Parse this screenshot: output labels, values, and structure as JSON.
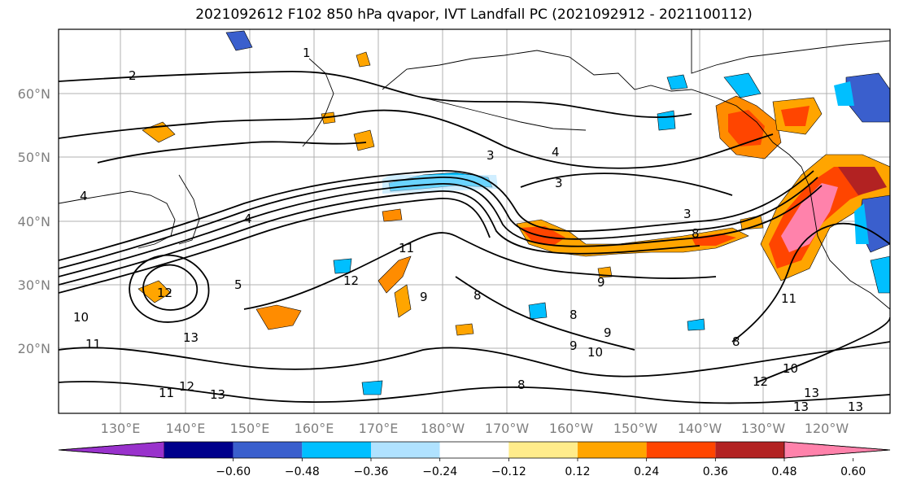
{
  "title": "2021092612 F102 850 hPa qvapor, IVT Landfall PC (2021092912 - 2021100112)",
  "map": {
    "lat_labels": [
      "60°N",
      "50°N",
      "40°N",
      "30°N",
      "20°N"
    ],
    "lon_labels": [
      "130°E",
      "140°E",
      "150°E",
      "160°E",
      "170°E",
      "180°W",
      "170°W",
      "160°W",
      "150°W",
      "140°W",
      "130°W",
      "120°W"
    ],
    "contour_labels": [
      "1",
      "2",
      "3",
      "4",
      "3",
      "3",
      "4",
      "4",
      "8",
      "5",
      "11",
      "12",
      "9",
      "8",
      "9",
      "8",
      "9",
      "9",
      "10",
      "10",
      "11",
      "12",
      "13",
      "12",
      "11",
      "13",
      "13",
      "12",
      "10",
      "13",
      "13",
      "11",
      "8",
      "8"
    ]
  },
  "colorbar": {
    "colors": [
      "#9932CC",
      "#00008B",
      "#3A5FCD",
      "#00BFFF",
      "#B0E2FF",
      "#FFFFFF",
      "#FFEC8B",
      "#FFA500",
      "#FF4500",
      "#B22222",
      "#FF82AB"
    ],
    "tick_labels": [
      "−0.60",
      "−0.48",
      "−0.36",
      "−0.24",
      "−0.12",
      "0.12",
      "0.24",
      "0.36",
      "0.48",
      "0.60"
    ]
  }
}
